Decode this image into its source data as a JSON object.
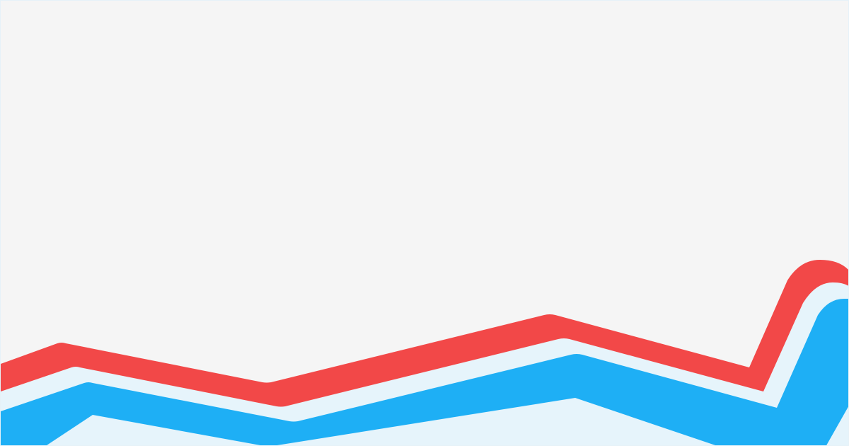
{
  "background": {
    "color": "#f5f5f5",
    "border_color": "#e6f2f8"
  },
  "bands": [
    {
      "name": "red-band",
      "color": "#f24848"
    },
    {
      "name": "light-band",
      "color": "#e6f4fb"
    },
    {
      "name": "blue-band",
      "color": "#1eaff5"
    }
  ]
}
